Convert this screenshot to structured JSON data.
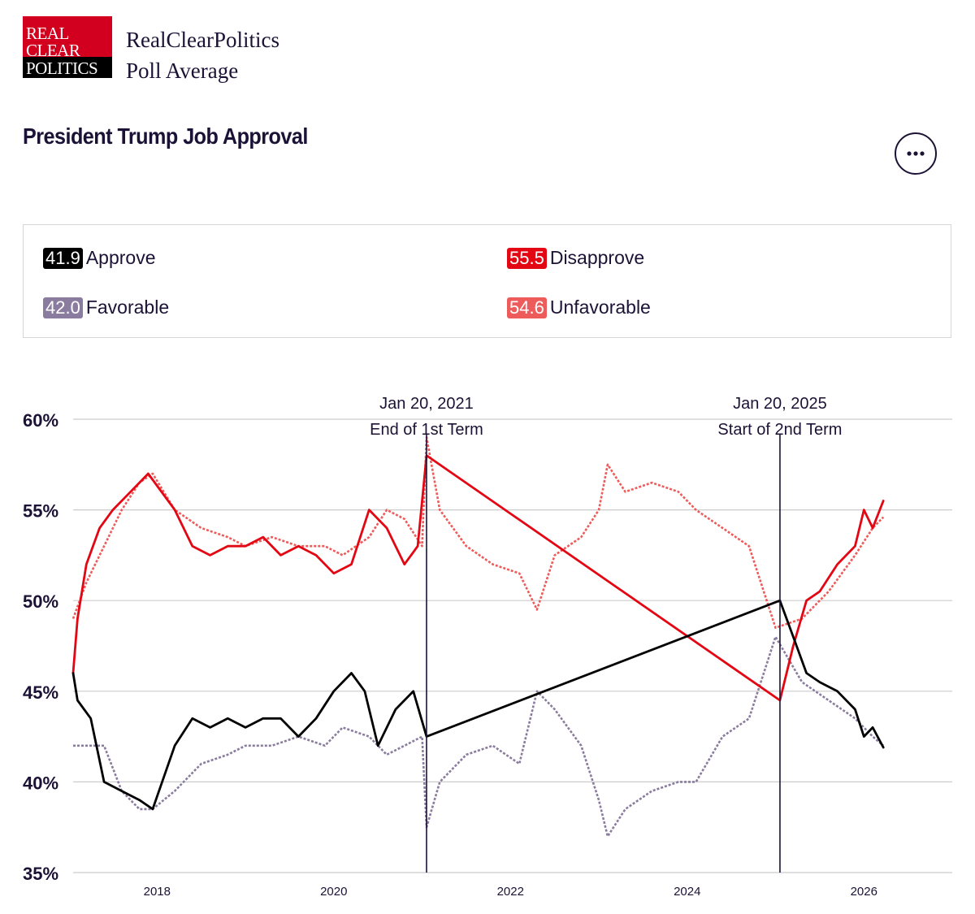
{
  "header": {
    "logo": {
      "line1": "REAL",
      "line2": "CLEAR",
      "line3": "POLITICS"
    },
    "brand_line1": "RealClearPolitics",
    "brand_line2": "Poll Average"
  },
  "title": "President Trump Job Approval",
  "legend": [
    {
      "value": "41.9",
      "label": "Approve",
      "color": "#000000"
    },
    {
      "value": "55.5",
      "label": "Disapprove",
      "color": "#e30613"
    },
    {
      "value": "42.0",
      "label": "Favorable",
      "color": "#8a7c9e"
    },
    {
      "value": "54.6",
      "label": "Unfavorable",
      "color": "#ee5b5b"
    }
  ],
  "chart_data": {
    "type": "line",
    "title": "President Trump Job Approval",
    "ylim": [
      35,
      60
    ],
    "yticks": [
      35,
      40,
      45,
      50,
      55,
      60
    ],
    "ytick_labels": [
      "35%",
      "40%",
      "45%",
      "50%",
      "55%",
      "60%"
    ],
    "xlim": [
      2017.05,
      2027.0
    ],
    "xticks": [
      2018,
      2020,
      2022,
      2024,
      2026
    ],
    "xtick_labels": [
      "2018",
      "2020",
      "2022",
      "2024",
      "2026"
    ],
    "annotations": [
      {
        "x": 2021.05,
        "date": "Jan 20, 2021",
        "text": "End of 1st Term"
      },
      {
        "x": 2025.05,
        "date": "Jan 20, 2025",
        "text": "Start of 2nd Term"
      }
    ],
    "series": [
      {
        "name": "Approve",
        "color": "#000000",
        "style": "solid",
        "x": [
          2017.05,
          2017.1,
          2017.25,
          2017.4,
          2017.6,
          2017.8,
          2017.95,
          2018.2,
          2018.4,
          2018.6,
          2018.8,
          2019.0,
          2019.2,
          2019.4,
          2019.6,
          2019.8,
          2020.0,
          2020.2,
          2020.35,
          2020.5,
          2020.7,
          2020.9,
          2021.05,
          2025.05,
          2025.2,
          2025.35,
          2025.5,
          2025.7,
          2025.9,
          2026.0,
          2026.1,
          2026.22
        ],
        "values": [
          46,
          44.5,
          43.5,
          40,
          39.5,
          39,
          38.5,
          42,
          43.5,
          43,
          43.5,
          43,
          43.5,
          43.5,
          42.5,
          43.5,
          45,
          46,
          45,
          42,
          44,
          45,
          42.5,
          50,
          48,
          46,
          45.5,
          45,
          44,
          42.5,
          43,
          41.9
        ]
      },
      {
        "name": "Disapprove",
        "color": "#e30613",
        "style": "solid",
        "x": [
          2017.05,
          2017.1,
          2017.2,
          2017.35,
          2017.5,
          2017.7,
          2017.9,
          2018.2,
          2018.4,
          2018.6,
          2018.8,
          2019.0,
          2019.2,
          2019.4,
          2019.6,
          2019.8,
          2020.0,
          2020.2,
          2020.4,
          2020.6,
          2020.8,
          2020.95,
          2021.05,
          2025.05,
          2025.2,
          2025.35,
          2025.5,
          2025.7,
          2025.9,
          2026.0,
          2026.1,
          2026.22
        ],
        "values": [
          46,
          49,
          52,
          54,
          55,
          56,
          57,
          55,
          53,
          52.5,
          53,
          53,
          53.5,
          52.5,
          53,
          52.5,
          51.5,
          52,
          55,
          54,
          52,
          53,
          58,
          44.5,
          47.5,
          50,
          50.5,
          52,
          53,
          55,
          54,
          55.5
        ]
      },
      {
        "name": "Favorable",
        "color": "#8a7c9e",
        "style": "dotted",
        "x": [
          2017.05,
          2017.2,
          2017.4,
          2017.6,
          2017.8,
          2017.95,
          2018.2,
          2018.5,
          2018.8,
          2019.0,
          2019.3,
          2019.6,
          2019.9,
          2020.1,
          2020.4,
          2020.6,
          2020.8,
          2021.0,
          2021.05,
          2021.2,
          2021.5,
          2021.8,
          2022.1,
          2022.3,
          2022.5,
          2022.8,
          2023.0,
          2023.1,
          2023.3,
          2023.6,
          2023.9,
          2024.1,
          2024.4,
          2024.7,
          2025.0,
          2025.3,
          2025.6,
          2025.9,
          2026.1,
          2026.22
        ],
        "values": [
          42,
          42,
          42,
          39.5,
          38.5,
          38.5,
          39.5,
          41,
          41.5,
          42,
          42,
          42.5,
          42,
          43,
          42.5,
          41.5,
          42,
          42.5,
          37.5,
          40,
          41.5,
          42,
          41,
          45,
          44,
          42,
          39,
          37,
          38.5,
          39.5,
          40,
          40,
          42.5,
          43.5,
          48,
          45.5,
          44.5,
          43.5,
          42.5,
          42
        ]
      },
      {
        "name": "Unfavorable",
        "color": "#ee5b5b",
        "style": "dotted",
        "x": [
          2017.05,
          2017.2,
          2017.4,
          2017.6,
          2017.8,
          2017.95,
          2018.2,
          2018.5,
          2018.8,
          2019.0,
          2019.3,
          2019.6,
          2019.9,
          2020.1,
          2020.4,
          2020.6,
          2020.8,
          2021.0,
          2021.05,
          2021.2,
          2021.5,
          2021.8,
          2022.1,
          2022.3,
          2022.5,
          2022.8,
          2023.0,
          2023.1,
          2023.3,
          2023.6,
          2023.9,
          2024.1,
          2024.4,
          2024.7,
          2025.0,
          2025.3,
          2025.6,
          2025.9,
          2026.1,
          2026.22
        ],
        "values": [
          49,
          51,
          53,
          55,
          56.5,
          57,
          55,
          54,
          53.5,
          53,
          53.5,
          53,
          53,
          52.5,
          53.5,
          55,
          54.5,
          53,
          59,
          55,
          53,
          52,
          51.5,
          49.5,
          52.5,
          53.5,
          55,
          57.5,
          56,
          56.5,
          56,
          55,
          54,
          53,
          48.5,
          49,
          50.5,
          52.5,
          54,
          54.6
        ]
      }
    ]
  }
}
